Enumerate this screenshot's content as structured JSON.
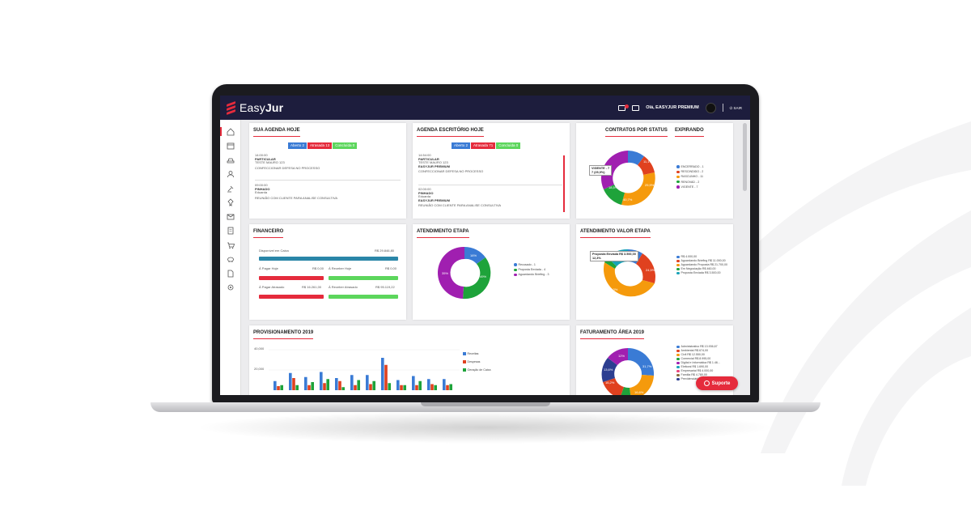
{
  "app": {
    "brand_main": "Easy",
    "brand_bold": "Jur"
  },
  "topbar": {
    "user": "Olá, EASYJUR PREMIUM",
    "exit": "SAIR"
  },
  "agenda_hoje": {
    "title": "SUA AGENDA HOJE",
    "badges": [
      "Aberto 2",
      "Atrasada 13",
      "Concluída 0"
    ],
    "items": [
      {
        "time": "14:00:00",
        "line1": "PARTICULAR",
        "line2": "TESTE MAURO 123",
        "desc": "CONFECCIONAR DEFESA NO PROCESSO"
      },
      {
        "time": "09:00:00",
        "line1": "PINHADO",
        "line2": "Eduarda",
        "desc": "REUNIÃO COM CLIENTE PARA ANALISE CONSULTIVA"
      }
    ]
  },
  "agenda_escritorio": {
    "title": "AGENDA ESCRITÓRIO HOJE",
    "badges": [
      "Aberto 2",
      "Atrasada 71",
      "Concluída 0"
    ],
    "items": [
      {
        "time": "14:54:00",
        "line1": "PARTICULAR",
        "line2": "TESTE MAURO 123",
        "line3": "EASYJUR PREMIUM",
        "desc": "CONFECCIONAR DEFESA NO PROCESSO"
      },
      {
        "time": "02:00:00",
        "line1": "PINHADO",
        "line2": "Eduarda",
        "line3": "EASYJUR PREMIUM",
        "desc": "REUNIÃO COM CLIENTE PARA ANALISE CONSULTIVA"
      }
    ]
  },
  "contratos": {
    "title": "CONTRATOS POR STATUS",
    "title2": "EXPIRANDO",
    "tooltip_line1": "VIGENTE - 7",
    "tooltip_line2": "7 (25,9%)",
    "labels": [
      "11,1%",
      "25,9%",
      "40,7%",
      "18,5%"
    ],
    "legend": [
      "ENCERRADO - 1",
      "RESCINDIDO - 2",
      "RASCUNHO - 11",
      "RENOVAD - 2",
      "VIGENTE - 7"
    ],
    "colors": [
      "#3a7bd5",
      "#e0411f",
      "#f59a0c",
      "#1ea33a",
      "#a01fb0"
    ]
  },
  "financeiro": {
    "title": "FINANCEIRO",
    "disponivel_label": "Disponível em Caixa",
    "disponivel_value": "R$ 29.846,80",
    "pagar_hoje_label": "À Pagar Hoje",
    "pagar_hoje_value": "R$ 0,00",
    "receber_hoje_label": "À Receber Hoje",
    "receber_hoje_value": "R$ 0,00",
    "pagar_atrasado_label": "À Pagar Atrasado",
    "pagar_atrasado_value": "R$ 16.261,00",
    "receber_atrasado_label": "À Receber Atrasado",
    "receber_atrasado_value": "R$ 95.119,22"
  },
  "atendimento_etapa": {
    "title": "ATENDIMENTO ETAPA",
    "labels": [
      "16%",
      "49%",
      "35%"
    ],
    "legend": [
      "Recusado - 1",
      "Proposta Enviada - 4",
      "Aguardando Briefing - 3"
    ],
    "colors": [
      "#3a7bd5",
      "#1ea33a",
      "#a01fb0"
    ]
  },
  "atendimento_valor": {
    "title": "ATENDIMENTO VALOR ETAPA",
    "tooltip_line1": "Proposta Enviada R$ 3.500,00",
    "tooltip_line2": "12,3%",
    "labels": [
      "24,5%",
      "51,3%"
    ],
    "legend": [
      "R$ 4.000,00",
      "Aguardando Briefing R$ 11.000,00",
      "Aguardando Proposta R$ 21.700,00",
      "Em Negociação R$ 460,00",
      "Proposta Enviada R$ 3.500,00"
    ],
    "colors": [
      "#3a7bd5",
      "#e0411f",
      "#f59a0c",
      "#1ea33a",
      "#19a2b8"
    ]
  },
  "provisionamento": {
    "title": "PROVISIONAMENTO 2019",
    "yticks": [
      "40,000",
      "20,000",
      "0"
    ],
    "legend": [
      "Receitas",
      "Despesas",
      "Geração de Caixa"
    ],
    "colors": [
      "#3a7bd5",
      "#e0411f",
      "#1ea33a"
    ]
  },
  "chart_data": {
    "type": "bar",
    "title": "PROVISIONAMENTO 2019",
    "categories": [
      "",
      "",
      "",
      "",
      "",
      "",
      "",
      "",
      "",
      "",
      "",
      ""
    ],
    "ylim": [
      0,
      40000
    ],
    "series": [
      {
        "name": "Receitas",
        "values": [
          9000,
          17000,
          13000,
          18000,
          12000,
          15000,
          15000,
          32000,
          10000,
          14000,
          11000,
          11000
        ]
      },
      {
        "name": "Despesas",
        "values": [
          4000,
          12000,
          5000,
          7000,
          9000,
          5000,
          6000,
          25000,
          5000,
          5000,
          6000,
          5000
        ]
      },
      {
        "name": "Geração de Caixa",
        "values": [
          5000,
          5000,
          8000,
          11000,
          3000,
          10000,
          9000,
          7000,
          5000,
          9000,
          5000,
          6000
        ]
      }
    ]
  },
  "faturamento": {
    "title": "FATURAMENTO ÁREA 2019",
    "labels": [
      "12%",
      "31,7%",
      "13,6%",
      "16,2%",
      "16,6%"
    ],
    "legend": [
      "Administrativo R$ 13.936,67",
      "Ambiental R$ 674,00",
      "Civil R$ 12.550,00",
      "Comercial R$ 8.995,00",
      "Digital e Informática R$ 1.46...",
      "Eleitoral R$ 1.690,00",
      "Empresarial R$ 4.000,00",
      "Família R$ 4.780,00",
      "Previdenciário R$ 1.000,00"
    ],
    "colors": [
      "#3a7bd5",
      "#e0411f",
      "#f59a0c",
      "#1ea33a",
      "#a01fb0",
      "#19a2b8",
      "#e8457a",
      "#8a6d3b",
      "#2c3e90"
    ]
  },
  "support": {
    "label": "Suporte"
  }
}
